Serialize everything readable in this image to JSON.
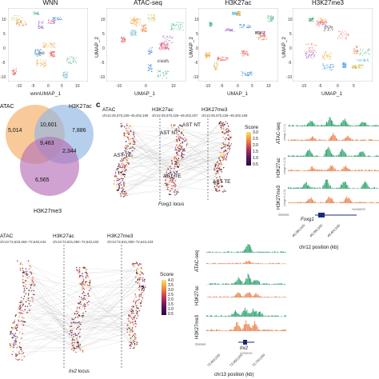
{
  "panel_c": {
    "letter": "c"
  },
  "umap": {
    "panels": [
      {
        "title": "WNN",
        "xlabel": "wnnUMAP_1",
        "ylabel": "",
        "xticks": [
          "-10",
          "-5",
          "0",
          "5",
          "10"
        ],
        "yticks": [
          "10",
          "5",
          "0",
          "-5",
          "-10"
        ]
      },
      {
        "title": "ATAC-seq",
        "xlabel": "UMAP_1",
        "ylabel": "UMAP_2",
        "xticks": [
          "-10",
          "0",
          "10"
        ],
        "yticks": [
          "10",
          "5",
          "0",
          "-5",
          "-10"
        ]
      },
      {
        "title": "H3K27ac",
        "xlabel": "UMAP_1",
        "ylabel": "UMAP_2",
        "xticks": [
          "-10",
          "-5",
          "0",
          "5",
          "10"
        ],
        "yticks": [
          "10",
          "5",
          "0",
          "-5",
          "-10"
        ]
      },
      {
        "title": "H3K27me3",
        "xlabel": "UMAP_1",
        "ylabel": "UMAP_2",
        "xticks": [
          "-10",
          "-5",
          "0",
          "5"
        ],
        "yticks": [
          "10",
          "5",
          "0",
          "-5",
          "-10"
        ]
      }
    ]
  },
  "venn": {
    "sets": [
      "ATAC",
      "H3K27ac",
      "H3K27me3"
    ],
    "regions": {
      "atac_only": "5,014",
      "atac_ac": "10,601",
      "ac_only": "7,886",
      "all": "9,463",
      "ac_me3": "2,344",
      "me3_only": "6,565"
    },
    "colors": {
      "atac": "#f6b877",
      "ac": "#8fb5e3",
      "me3": "#b670b8"
    }
  },
  "foxg1": {
    "tracks": [
      {
        "name": "ATAC",
        "coord": "chr12:49,370,226–49,402,169"
      },
      {
        "name": "H3K27ac",
        "coord": "chr12:49,370,226–49,402,257"
      },
      {
        "name": "H3K27me3",
        "coord": "chr12:49,370,226–49,402,169"
      }
    ],
    "cell_labels": {
      "ast_nt_1": "AST NT",
      "ast_nt_2": "AST NT",
      "ast_te_1": "AST TE",
      "ast_te_2": "AST TE",
      "ast_te_3": "AST TE"
    },
    "score": {
      "title": "Score",
      "ticks": [
        "3.0",
        "2.5",
        "2.0",
        "1.5",
        "1.0",
        "0.5"
      ]
    },
    "locus_gene": "Foxg1",
    "locus_suffix": " locus"
  },
  "irx2": {
    "tracks": [
      {
        "name": "ATAC",
        "coord": "chr13:72,633,463–72,640,434"
      },
      {
        "name": "H3K27ac",
        "coord": "chr13:72,631,050–72,643,103"
      },
      {
        "name": "H3K27me3",
        "coord": "chr13:72,631,050–72,643,103"
      }
    ],
    "score": {
      "title": "Score",
      "ticks": [
        "4.0",
        "3.5",
        "3.0",
        "2.5",
        "2.0",
        "1.5",
        "1.0",
        "0.5"
      ]
    },
    "locus_gene": "Irx2",
    "locus_suffix": " locus"
  },
  "genome_view_1": {
    "tracks": [
      {
        "name": "ATAC-seq",
        "range": "(range 0–1.1)"
      },
      {
        "name": "H3K27ac",
        "range": "(range 0–2.3)"
      },
      {
        "name": "H3K27me3",
        "range": "(range 0–2.3)"
      }
    ],
    "subtracks": [
      "AST_NT",
      "AST_TE"
    ],
    "genes_label": "Genes",
    "gene": "Foxg1",
    "gene_id": "Gm36829",
    "xticks": [
      "49,380,000",
      "49,390,000",
      "49,400,000"
    ],
    "xlabel": "chr12 position (kb)"
  },
  "genome_view_2": {
    "tracks": [
      {
        "name": "ATAC-seq"
      },
      {
        "name": "H3K27ac"
      },
      {
        "name": "H3K27me3"
      }
    ],
    "subtracks": [
      "AST_NT",
      "AST_TE"
    ],
    "genes_label": "Genes",
    "gene": "Irx2",
    "gene_id": "C030019",
    "xticks": [
      "72,600,000",
      "72,650,000",
      "72,700,000"
    ],
    "xlabel": "chr13 position (kb)"
  },
  "colors": {
    "nt": "#3aa876",
    "te": "#ef8a55",
    "score_low": "#2b0a3d",
    "score_high": "#fbe26a"
  }
}
